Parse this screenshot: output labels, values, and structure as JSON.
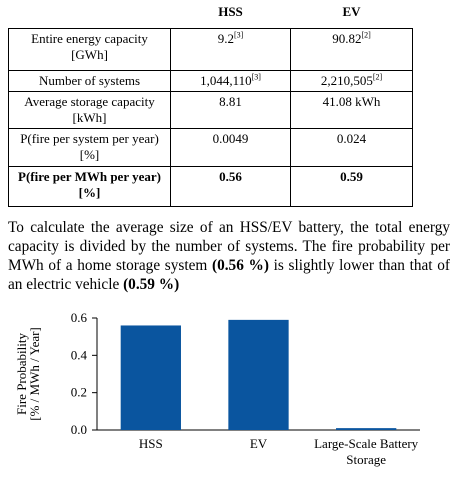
{
  "table": {
    "columns": [
      "HSS",
      "EV"
    ],
    "rows": [
      {
        "cells": [
          {
            "text": "Entire energy capacity [GWh]"
          },
          {
            "text": "9.2",
            "sup": "[3]"
          },
          {
            "text": "90.82",
            "sup": "[2]"
          }
        ]
      },
      {
        "cells": [
          {
            "text": "Number of systems"
          },
          {
            "text": "1,044,110",
            "sup": "[3]"
          },
          {
            "text": "2,210,505",
            "sup": "[2]"
          }
        ]
      },
      {
        "cells": [
          {
            "text": "Average storage capacity [kWh]"
          },
          {
            "text": "8.81"
          },
          {
            "text": "41.08 kWh"
          }
        ]
      },
      {
        "cells": [
          {
            "text": "P(fire per system per year) [%]"
          },
          {
            "text": "0.0049"
          },
          {
            "text": "0.024"
          }
        ]
      },
      {
        "cells": [
          {
            "text": "P(fire per MWh per year) [%]"
          },
          {
            "text": "0.56"
          },
          {
            "text": "0.59"
          }
        ],
        "bold": true
      }
    ]
  },
  "paragraph": [
    {
      "text": "To calculate the average size of an HSS/EV battery, the total energy capacity is divided by the number of systems. The fire probability per MWh of a home storage system ",
      "bold": false
    },
    {
      "text": "(0.56 %)",
      "bold": true
    },
    {
      "text": " is slightly lower than that of an electric vehicle ",
      "bold": false
    },
    {
      "text": "(0.59 %)",
      "bold": true
    }
  ],
  "chart_data": {
    "type": "bar",
    "ylabel": [
      "Fire Probability",
      "[% / MWh / Year]"
    ],
    "categories": [
      "HSS",
      "EV",
      "Large-Scale Battery Storage"
    ],
    "values": [
      0.56,
      0.59,
      0.01
    ],
    "color": "#0a559f",
    "ylim": [
      0,
      0.6
    ],
    "yticks": [
      {
        "value": 0,
        "label": "0.0"
      },
      0.2,
      0.4,
      0.6
    ],
    "grid": false
  }
}
